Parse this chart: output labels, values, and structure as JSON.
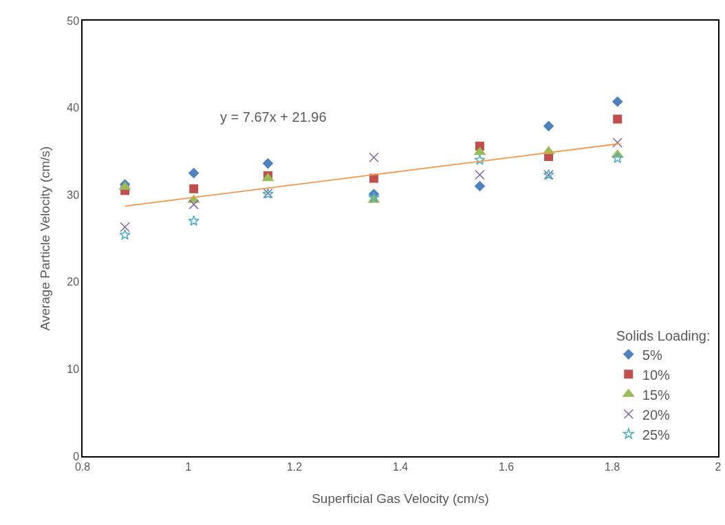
{
  "chart_data": {
    "type": "scatter",
    "xlabel": "Superficial Gas Velocity (cm/s)",
    "ylabel": "Average Particle Velocity (cm/s)",
    "legend_title": "Solids Loading:",
    "legend": "bottom right",
    "grid": false,
    "x": [
      0.88,
      1.01,
      1.15,
      1.35,
      1.55,
      1.68,
      1.81
    ],
    "xlim": [
      0.8,
      2
    ],
    "xticks": [
      0.8,
      1,
      1.2,
      1.4,
      1.6,
      1.8,
      2
    ],
    "ylim": [
      0,
      50
    ],
    "yticks": [
      0,
      10,
      20,
      30,
      40,
      50
    ],
    "annotations": [
      "y = 7.67x + 21.96"
    ],
    "series": [
      {
        "name": "5%",
        "color": "#4f81bd",
        "marker": "diamond",
        "values": [
          31.2,
          32.5,
          33.6,
          30.1,
          31.0,
          37.9,
          40.7
        ]
      },
      {
        "name": "10%",
        "color": "#c0504d",
        "marker": "square",
        "values": [
          30.5,
          30.7,
          32.2,
          31.9,
          35.6,
          34.4,
          38.7
        ]
      },
      {
        "name": "15%",
        "color": "#9bbb59",
        "marker": "triangle",
        "values": [
          30.9,
          29.4,
          31.9,
          29.4,
          34.9,
          35.0,
          34.6
        ]
      },
      {
        "name": "20%",
        "color": "#8064a2",
        "marker": "cross",
        "values": [
          26.3,
          28.9,
          30.2,
          34.3,
          32.3,
          32.3,
          36.0
        ]
      },
      {
        "name": "25%",
        "color": "#4bacc6",
        "marker": "star",
        "values": [
          25.4,
          27.0,
          30.1,
          29.7,
          34.0,
          32.3,
          34.2
        ]
      },
      {
        "type": "line",
        "color": "#f79646",
        "marker": "none",
        "x": [
          0.88,
          1.815
        ],
        "values": [
          28.71,
          35.88
        ]
      }
    ]
  }
}
